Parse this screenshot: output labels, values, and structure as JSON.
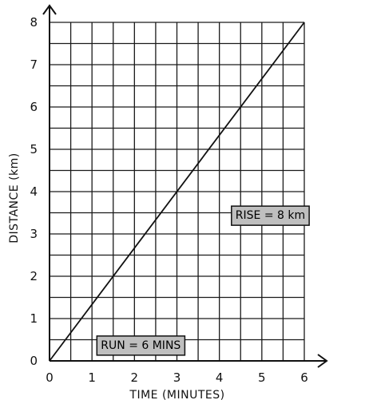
{
  "chart_data": {
    "type": "line",
    "xlabel": "TIME  (MINUTES)",
    "ylabel": "DISTANCE  (km)",
    "xlim": [
      0,
      6
    ],
    "ylim": [
      0,
      8
    ],
    "x_ticks": [
      "0",
      "1",
      "2",
      "3",
      "4",
      "5",
      "6"
    ],
    "y_ticks": [
      "0",
      "1",
      "2",
      "3",
      "4",
      "5",
      "6",
      "7",
      "8"
    ],
    "grid": true,
    "grid_minor_x": 0.5,
    "grid_minor_y": 0.5,
    "series": [
      {
        "x": [
          0,
          6
        ],
        "y": [
          0,
          8
        ],
        "color": "#111111"
      }
    ],
    "annotations": [
      {
        "text": "RISE = 8  km",
        "x": 5.2,
        "y": 3.45
      },
      {
        "text": "RUN = 6 MINS",
        "x": 2.15,
        "y": 0.38
      }
    ]
  }
}
